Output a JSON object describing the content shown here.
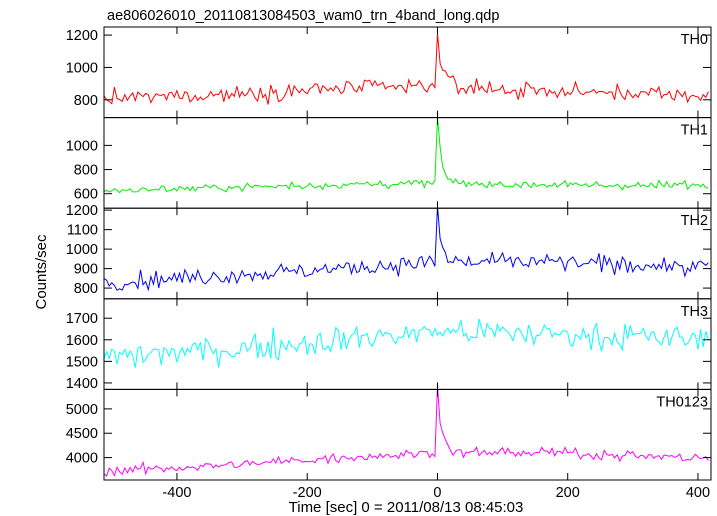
{
  "chart_data": {
    "type": "line",
    "title": "ae806026010_20110813084503_wam0_trn_4band_long.qdp",
    "xlabel": "Time [sec] 0 = 2011/08/13 08:45:03",
    "ylabel": "Counts/sec",
    "xlim": [
      -512,
      420
    ],
    "xticks": [
      -400,
      -200,
      0,
      200,
      400
    ],
    "grid": false,
    "series_x": {
      "start": -512,
      "end": 416,
      "step": 4
    },
    "panels": [
      {
        "name": "TH0",
        "color": "#ff0000",
        "ylim": [
          690,
          1250
        ],
        "yticks": [
          800,
          1000,
          1200
        ],
        "baseline": [
          [
            -512,
            805
          ],
          [
            -300,
            840
          ],
          [
            -150,
            870
          ],
          [
            -20,
            880
          ],
          [
            0,
            878
          ],
          [
            150,
            855
          ],
          [
            300,
            840
          ],
          [
            416,
            818
          ]
        ],
        "noise": 35,
        "burst": {
          "peak": 1225,
          "tau": 8,
          "background": 880
        }
      },
      {
        "name": "TH1",
        "color": "#00ee00",
        "ylim": [
          480,
          1230
        ],
        "yticks": [
          600,
          800,
          1000
        ],
        "baseline": [
          [
            -512,
            625
          ],
          [
            -300,
            655
          ],
          [
            -100,
            680
          ],
          [
            0,
            685
          ],
          [
            150,
            675
          ],
          [
            300,
            668
          ],
          [
            416,
            672
          ]
        ],
        "noise": 22,
        "burst": {
          "peak": 1200,
          "tau": 6,
          "background": 685
        }
      },
      {
        "name": "TH2",
        "color": "#0000ff",
        "ylim": [
          745,
          1210
        ],
        "yticks": [
          800,
          900,
          1000,
          1100,
          1200
        ],
        "baseline": [
          [
            -512,
            830
          ],
          [
            -300,
            870
          ],
          [
            -100,
            910
          ],
          [
            0,
            935
          ],
          [
            150,
            935
          ],
          [
            300,
            920
          ],
          [
            416,
            905
          ]
        ],
        "noise": 30,
        "burst": {
          "peak": 1185,
          "tau": 6,
          "background": 935
        }
      },
      {
        "name": "TH3",
        "color": "#00ffff",
        "ylim": [
          1370,
          1790
        ],
        "yticks": [
          1400,
          1500,
          1600,
          1700
        ],
        "baseline": [
          [
            -512,
            1520
          ],
          [
            -300,
            1560
          ],
          [
            -150,
            1600
          ],
          [
            0,
            1640
          ],
          [
            200,
            1625
          ],
          [
            416,
            1600
          ]
        ],
        "noise": 45,
        "burst": null
      },
      {
        "name": "TH0123",
        "color": "#ff00ff",
        "ylim": [
          3540,
          5400
        ],
        "yticks": [
          4000,
          4500,
          5000
        ],
        "baseline": [
          [
            -512,
            3720
          ],
          [
            -300,
            3860
          ],
          [
            -150,
            4000
          ],
          [
            0,
            4100
          ],
          [
            150,
            4110
          ],
          [
            300,
            4050
          ],
          [
            416,
            3980
          ]
        ],
        "noise": 70,
        "burst": {
          "peak": 5380,
          "tau": 7,
          "background": 4100
        }
      }
    ]
  }
}
